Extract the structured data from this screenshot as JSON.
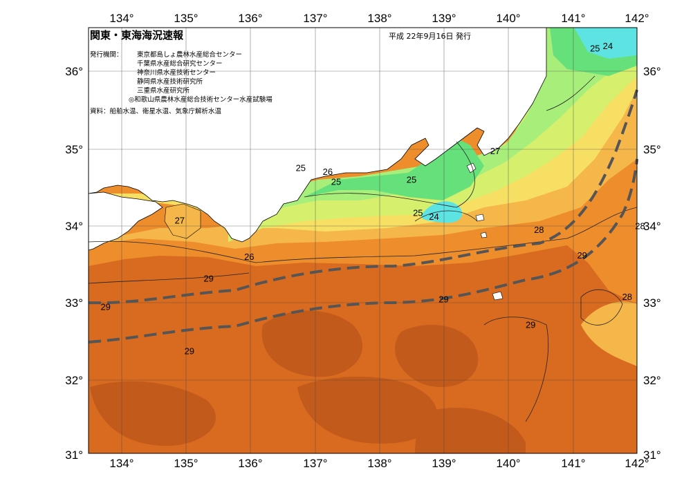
{
  "header": {
    "title": "関東・東海海況速報",
    "date": "平成 22年9月16日 発行",
    "publisher_label": "発行機関：",
    "publishers": [
      "東京都島しょ農林水産総合センター",
      "千葉県水産総合研究センター",
      "神奈川県水産技術センター",
      "静岡県水産技術研究所",
      "三重県水産研究所",
      "◎和歌山県農林水産総合技術センター水産試験場"
    ],
    "source": "資料：船舶水温、衛星水温、気象庁解析水温"
  },
  "axes": {
    "longitude_labels": [
      "134°",
      "135°",
      "136°",
      "137°",
      "138°",
      "139°",
      "140°",
      "141°",
      "142°"
    ],
    "latitude_labels_left": [
      "36°",
      "35°",
      "34°",
      "33°",
      "32°",
      "31°"
    ],
    "latitude_labels_right": [
      "36°",
      "35°",
      "34°",
      "33°",
      "32°",
      "31°"
    ]
  },
  "contour_labels": [
    {
      "text": "25",
      "lon": 141.35,
      "lat": 36.3
    },
    {
      "text": "24",
      "lon": 141.55,
      "lat": 36.33
    },
    {
      "text": "27",
      "lon": 139.8,
      "lat": 34.97
    },
    {
      "text": "25",
      "lon": 136.78,
      "lat": 34.75
    },
    {
      "text": "26",
      "lon": 137.2,
      "lat": 34.7
    },
    {
      "text": "25",
      "lon": 137.33,
      "lat": 34.57
    },
    {
      "text": "25",
      "lon": 138.5,
      "lat": 34.6
    },
    {
      "text": "25",
      "lon": 138.6,
      "lat": 34.17
    },
    {
      "text": "24",
      "lon": 138.85,
      "lat": 34.12
    },
    {
      "text": "27",
      "lon": 134.9,
      "lat": 34.07
    },
    {
      "text": "28",
      "lon": 140.48,
      "lat": 33.95
    },
    {
      "text": "28",
      "lon": 142.05,
      "lat": 34.0
    },
    {
      "text": "26",
      "lon": 135.98,
      "lat": 33.6
    },
    {
      "text": "29",
      "lon": 135.35,
      "lat": 33.32
    },
    {
      "text": "29",
      "lon": 141.15,
      "lat": 33.62
    },
    {
      "text": "29",
      "lon": 133.75,
      "lat": 32.95
    },
    {
      "text": "29",
      "lon": 139.0,
      "lat": 33.05
    },
    {
      "text": "28",
      "lon": 141.85,
      "lat": 33.08
    },
    {
      "text": "29",
      "lon": 140.35,
      "lat": 32.72
    },
    {
      "text": "29",
      "lon": 135.05,
      "lat": 32.38
    }
  ],
  "legend_colors": {
    "cyan": "#5ee3e3",
    "green_dark": "#66e07a",
    "green_light": "#a8ee7a",
    "yellow_green": "#d6f06e",
    "yellow": "#f7df63",
    "light_orange": "#f5b74a",
    "orange": "#ee8d2b",
    "dark_orange": "#d86b1f",
    "deep_orange": "#c25a1c",
    "kuroshio_line": "#555555"
  }
}
